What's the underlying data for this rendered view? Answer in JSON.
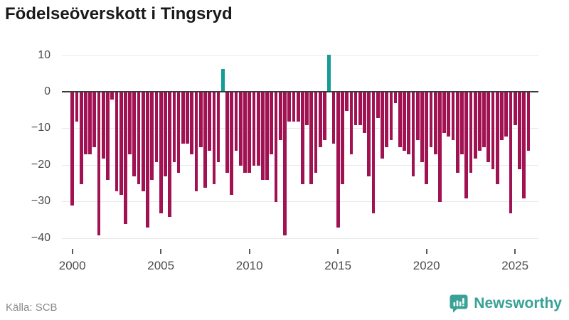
{
  "title": "Födelseöverskott i Tingsryd",
  "source": "Källa: SCB",
  "logo": {
    "text": "Newsworthy",
    "icon": "newsworthy-bars-icon",
    "color": "#38a296"
  },
  "colors": {
    "bar_negative": "#a11253",
    "bar_positive": "#149d97",
    "axis_line": "#3b3b3b",
    "gridline": "#e9e9e9",
    "tick_text": "#4d4d4d",
    "source_text": "#8a8a8a"
  },
  "chart_data": {
    "type": "bar",
    "title": "Födelseöverskott i Tingsryd",
    "x_unit": "quarter",
    "start_year": 2000,
    "end_year": 2025,
    "categories_note": "104 quarterly values, 2000Q1 - 2025Q4",
    "series": [
      {
        "name": "Födelseöverskott",
        "values": [
          -31,
          -8,
          -25,
          -17,
          -17,
          -15,
          -39,
          -18,
          -24,
          -2,
          -27,
          -28,
          -36,
          -17,
          -23,
          -25,
          -27,
          -37,
          -24,
          -19,
          -33,
          -23,
          -34,
          -19,
          -22,
          -14,
          -14,
          -17,
          -27,
          -15,
          -26,
          -16,
          -25,
          -19,
          6,
          -22,
          -28,
          -16,
          -20,
          -22,
          -22,
          -20,
          -20,
          -24,
          -24,
          -17,
          -30,
          -13,
          -39,
          -8,
          -8,
          -8,
          -25,
          -9,
          -25,
          -22,
          -15,
          -13,
          10,
          -14,
          -37,
          -25,
          -5,
          -17,
          -9,
          -9,
          -11,
          -23,
          -33,
          -7,
          -18,
          -15,
          -13,
          -3,
          -15,
          -16,
          -17,
          -23,
          -13,
          -19,
          -25,
          -15,
          -17,
          -30,
          -11,
          -12,
          -13,
          -22,
          -17,
          -29,
          -22,
          -18,
          -16,
          -15,
          -19,
          -21,
          -25,
          -13,
          -12,
          -33,
          -9,
          -21,
          -29,
          -16
        ]
      }
    ],
    "x_ticks": [
      2000,
      2005,
      2010,
      2015,
      2020,
      2025
    ],
    "y_ticks": [
      10,
      0,
      -10,
      -20,
      -30,
      -40
    ],
    "ylim": [
      -42,
      12
    ],
    "xlabel": "",
    "ylabel": "",
    "grid": true,
    "legend": false,
    "positive_color": "#149d97",
    "negative_color": "#a11253"
  }
}
